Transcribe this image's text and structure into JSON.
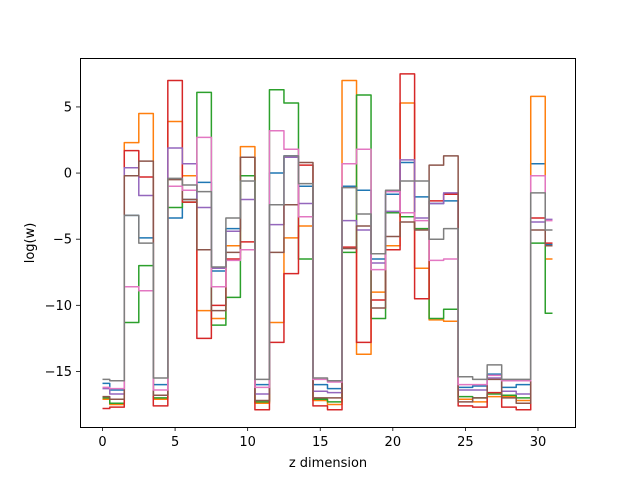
{
  "chart_data": {
    "type": "line",
    "title": "",
    "xlabel": "z dimension",
    "ylabel": "log(w)",
    "xlim": [
      -1.55,
      32.55
    ],
    "ylim": [
      -19.2,
      8.7
    ],
    "xticks": [
      0,
      5,
      10,
      15,
      20,
      25,
      30
    ],
    "yticks": [
      -15,
      -10,
      -5,
      0,
      5
    ],
    "drawstyle": "steps-mid",
    "grid": false,
    "x": [
      0,
      1,
      2,
      3,
      4,
      5,
      6,
      7,
      8,
      9,
      10,
      11,
      12,
      13,
      14,
      15,
      16,
      17,
      18,
      19,
      20,
      21,
      22,
      23,
      24,
      25,
      26,
      27,
      28,
      29,
      30,
      31
    ],
    "series": [
      {
        "color": "#1f77b4",
        "values": [
          -15.9,
          -16.4,
          -3.2,
          -4.9,
          -16.0,
          -3.4,
          -2.0,
          -0.7,
          -7.4,
          -4.2,
          1.2,
          -16.0,
          0.0,
          1.3,
          -1.0,
          -16.0,
          -16.3,
          -1.0,
          -1.3,
          -6.5,
          -1.6,
          0.8,
          -1.8,
          -2.3,
          -2.1,
          -16.2,
          -16.1,
          -15.2,
          -16.2,
          -16.0,
          0.7,
          -5.4
        ]
      },
      {
        "color": "#ff7f0e",
        "values": [
          -17.1,
          -17.5,
          2.3,
          4.5,
          -17.1,
          3.9,
          -0.2,
          -10.4,
          -11.0,
          -5.5,
          2.0,
          -17.4,
          -11.3,
          -4.9,
          -4.0,
          -17.2,
          -17.5,
          7.0,
          -13.7,
          -9.0,
          -5.5,
          5.3,
          -7.2,
          -11.1,
          -11.2,
          -17.1,
          -17.3,
          -16.9,
          -16.9,
          -17.2,
          5.8,
          -6.5
        ]
      },
      {
        "color": "#2ca02c",
        "values": [
          -17.0,
          -17.4,
          -11.3,
          -7.0,
          -17.0,
          -2.6,
          -2.2,
          6.1,
          -11.5,
          -9.4,
          -0.2,
          -17.3,
          6.3,
          5.3,
          -6.5,
          -17.1,
          -17.3,
          -6.0,
          5.9,
          -11.0,
          -3.0,
          -3.3,
          -4.2,
          -11.0,
          -10.3,
          -16.9,
          -17.0,
          -16.7,
          -16.8,
          -17.0,
          -5.3,
          -10.6
        ]
      },
      {
        "color": "#d62728",
        "values": [
          -17.8,
          -17.7,
          1.7,
          -0.3,
          -17.6,
          7.0,
          -2.2,
          -12.5,
          -10.0,
          -6.5,
          -5.2,
          -17.9,
          -12.8,
          -7.6,
          0.6,
          -17.6,
          -17.9,
          -5.6,
          -12.8,
          -9.6,
          -5.8,
          7.5,
          -9.5,
          -2.1,
          -1.6,
          -17.6,
          -17.7,
          -16.6,
          -17.7,
          -17.9,
          -3.4,
          -5.3
        ]
      },
      {
        "color": "#9467bd",
        "values": [
          -16.3,
          -16.7,
          0.4,
          -1.7,
          -16.8,
          1.9,
          0.7,
          -2.6,
          -7.2,
          -4.4,
          -2.0,
          -16.7,
          -3.9,
          1.2,
          -2.3,
          -16.5,
          -16.6,
          -3.6,
          -4.3,
          -6.8,
          -2.9,
          1.0,
          -3.4,
          -2.3,
          -1.5,
          -16.4,
          -16.4,
          -15.5,
          -16.5,
          -16.7,
          -3.7,
          -3.5
        ]
      },
      {
        "color": "#8c564b",
        "values": [
          -16.9,
          -17.1,
          -0.2,
          0.9,
          -16.8,
          -0.5,
          -2.0,
          -5.8,
          -10.4,
          -6.0,
          1.2,
          -17.2,
          -6.0,
          -2.4,
          0.8,
          -17.0,
          -17.0,
          -5.7,
          -4.0,
          -10.2,
          -4.8,
          -3.7,
          -4.3,
          0.6,
          1.3,
          -17.3,
          -17.0,
          -15.6,
          -17.0,
          -17.4,
          -4.3,
          -5.5
        ]
      },
      {
        "color": "#e377c2",
        "values": [
          -16.2,
          -16.3,
          -8.6,
          -8.9,
          -16.4,
          -1.0,
          -1.3,
          2.7,
          -8.6,
          -6.6,
          -5.8,
          -16.2,
          3.2,
          1.8,
          -3.3,
          -15.6,
          -15.8,
          0.7,
          1.8,
          -7.3,
          -1.4,
          -3.0,
          -3.6,
          -6.6,
          -6.5,
          -16.0,
          -16.0,
          -15.3,
          -15.7,
          -15.7,
          -0.2,
          -3.6
        ]
      },
      {
        "color": "#7f7f7f",
        "values": [
          -15.6,
          -15.7,
          -3.2,
          -5.3,
          -15.5,
          -0.4,
          -0.9,
          -1.4,
          -7.1,
          -3.4,
          -0.6,
          -15.6,
          -2.4,
          1.3,
          -0.8,
          -15.5,
          -15.7,
          -1.1,
          -3.1,
          -6.1,
          -1.3,
          -0.6,
          -0.6,
          -5.0,
          -4.2,
          -15.4,
          -15.6,
          -14.5,
          -15.6,
          -15.6,
          -1.5,
          -4.3
        ]
      }
    ]
  }
}
